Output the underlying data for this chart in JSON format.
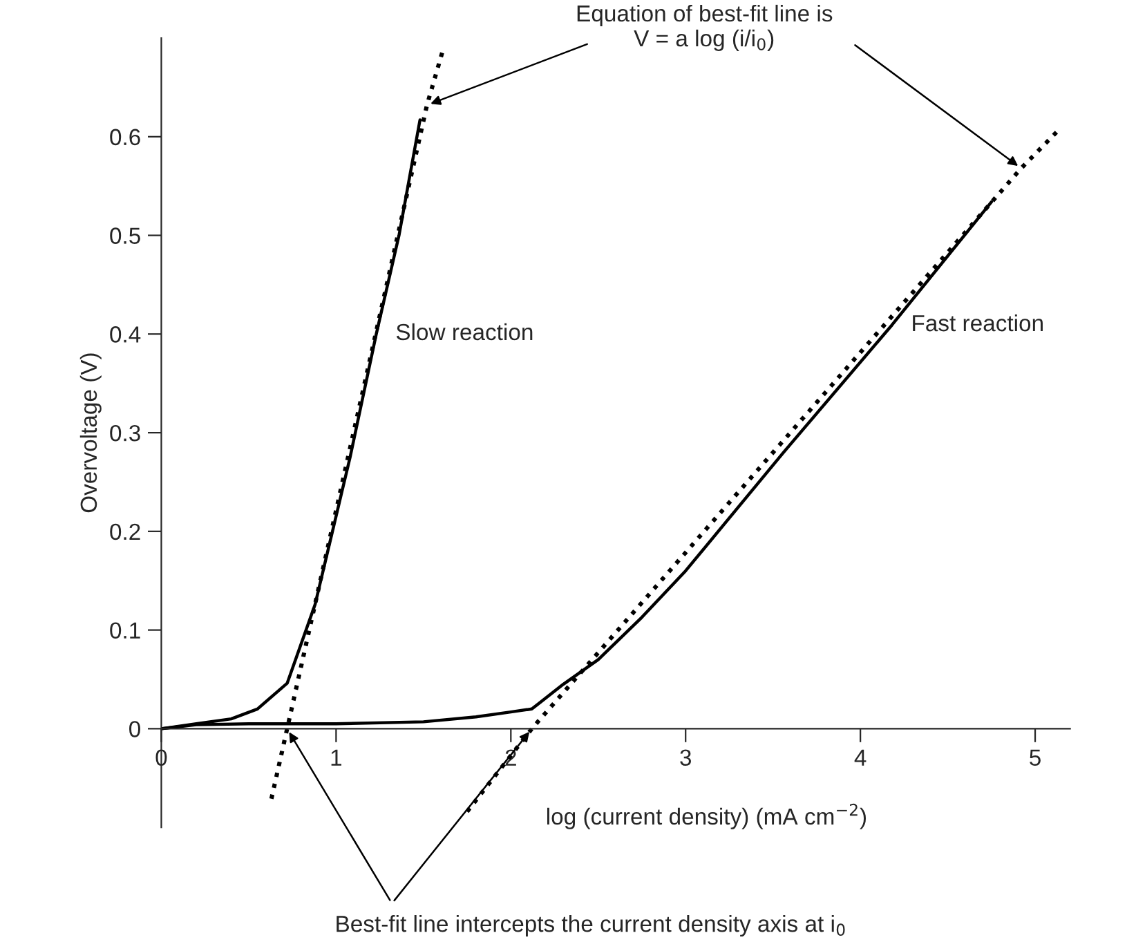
{
  "chart_data": {
    "type": "line",
    "xlabel": "log (current density) (mA cm$^{−2}$)",
    "ylabel": "Overvoltage (V)",
    "xlim": [
      0,
      5.2
    ],
    "ylim": [
      -0.1,
      0.7
    ],
    "xticks": [
      0,
      1,
      2,
      3,
      4,
      5
    ],
    "yticks": [
      0,
      0.1,
      0.2,
      0.3,
      0.4,
      0.5,
      0.6
    ],
    "grid": false,
    "legend": false,
    "marker": "none",
    "series": [
      {
        "name": "Slow reaction",
        "color": "#000000",
        "line_style": "solid",
        "x": [
          0,
          0.2,
          0.4,
          0.55,
          0.72,
          0.88,
          1.08,
          1.23,
          1.36,
          1.48
        ],
        "values": [
          0,
          0.005,
          0.01,
          0.02,
          0.046,
          0.126,
          0.275,
          0.4,
          0.5,
          0.617
        ]
      },
      {
        "name": "Fast reaction",
        "color": "#000000",
        "line_style": "solid",
        "x": [
          0,
          0.2,
          0.5,
          1.0,
          1.5,
          1.8,
          2.0,
          2.12,
          2.3,
          2.5,
          2.75,
          3.0,
          3.56,
          4.18,
          4.75
        ],
        "values": [
          0,
          0.004,
          0.005,
          0.005,
          0.007,
          0.012,
          0.017,
          0.02,
          0.045,
          0.07,
          0.113,
          0.16,
          0.28,
          0.409,
          0.534
        ]
      },
      {
        "color": "#000000",
        "line_style": "dotted",
        "x": [
          0.63,
          0.72,
          1.52,
          1.61
        ],
        "values": [
          -0.071,
          0,
          0.632,
          0.687
        ]
      },
      {
        "color": "#000000",
        "line_style": "dotted",
        "x": [
          1.75,
          2.12,
          4.92,
          5.13
        ],
        "values": [
          -0.084,
          0,
          0.568,
          0.606
        ]
      }
    ],
    "annotations": [
      {
        "text": "Equation of best-fit line is\nV = a log (i/i$_{0}$)",
        "x": 1.52,
        "y": 0.632
      },
      {
        "text": "Best-fit line intercepts the current density axis at i$_{0}$",
        "x": 0.72,
        "y": 0
      }
    ]
  }
}
